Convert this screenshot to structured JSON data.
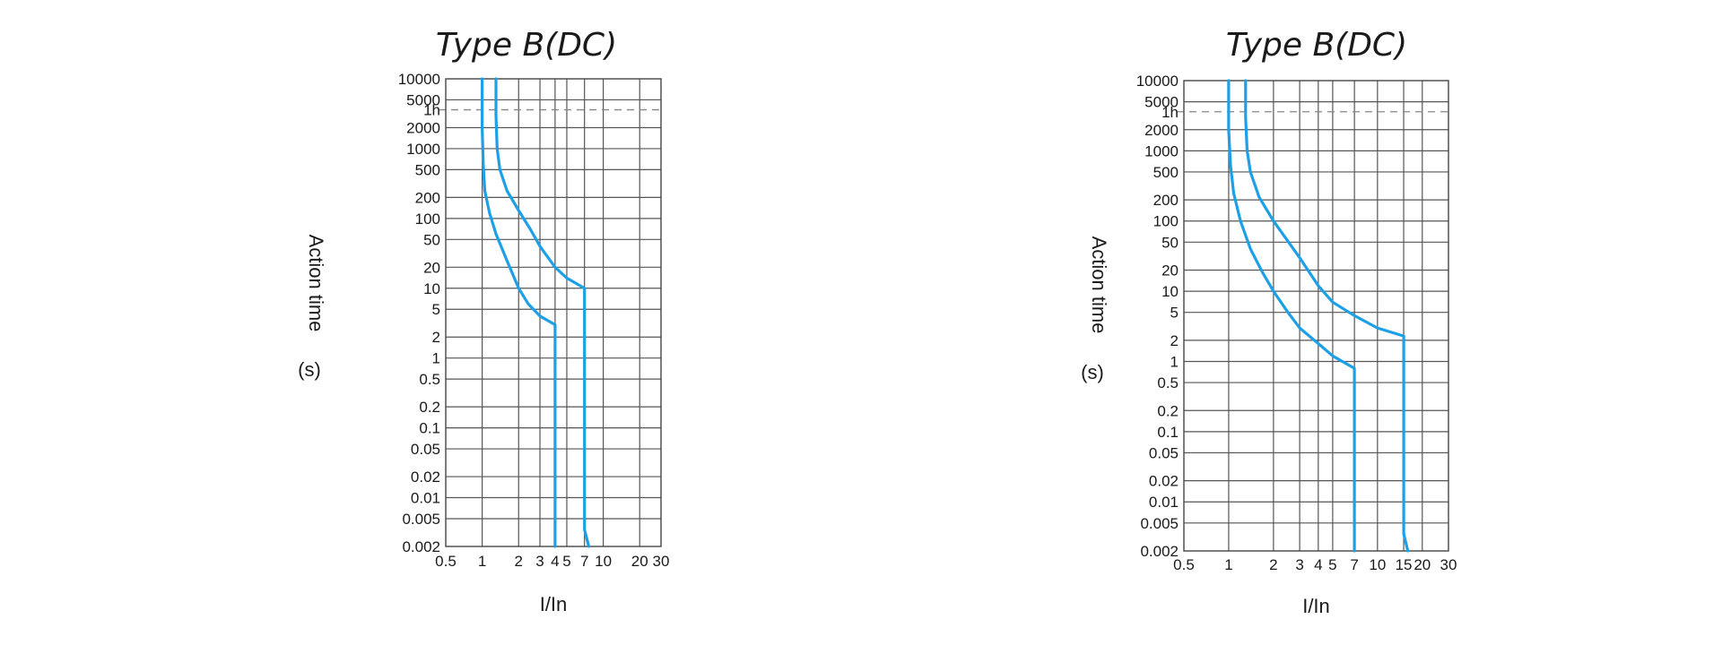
{
  "chart_data": [
    {
      "type": "line",
      "title": "Type B(DC)",
      "xlabel": "I/In",
      "ylabel": "Action time",
      "ylabel_unit": "(s)",
      "x_scale": "log",
      "y_scale": "log",
      "xlim": [
        0.5,
        30
      ],
      "ylim": [
        0.002,
        10000
      ],
      "x_ticks": [
        0.5,
        1,
        2,
        3,
        4,
        5,
        7,
        10,
        20,
        30
      ],
      "x_tick_labels": [
        "0.5",
        "1",
        "2",
        "3",
        "4",
        "5",
        "7",
        "10",
        "20",
        "30"
      ],
      "y_ticks": [
        10000,
        5000,
        3600,
        2000,
        1000,
        500,
        200,
        100,
        50,
        20,
        10,
        5,
        2,
        1,
        0.5,
        0.2,
        0.1,
        0.05,
        0.02,
        0.01,
        0.005,
        0.002
      ],
      "y_tick_labels": [
        "10000",
        "5000",
        "1h",
        "2000",
        "1000",
        "500",
        "200",
        "100",
        "50",
        "20",
        "10",
        "5",
        "2",
        "1",
        "0.5",
        "0.2",
        "0.1",
        "0.05",
        "0.02",
        "0.01",
        "0.005",
        "0.002"
      ],
      "reference_line": {
        "y": 3600,
        "label": "1h",
        "style": "dashed"
      },
      "grid": true,
      "series": [
        {
          "points": [
            [
              1,
              10000
            ],
            [
              1,
              2000
            ],
            [
              1.02,
              600
            ],
            [
              1.05,
              250
            ],
            [
              1.15,
              120
            ],
            [
              1.3,
              60
            ],
            [
              1.6,
              25
            ],
            [
              2,
              10
            ],
            [
              2.4,
              6
            ],
            [
              3,
              4
            ],
            [
              4,
              3
            ],
            [
              4,
              0.002
            ]
          ]
        },
        {
          "points": [
            [
              1.3,
              10000
            ],
            [
              1.3,
              3000
            ],
            [
              1.33,
              1000
            ],
            [
              1.4,
              500
            ],
            [
              1.6,
              250
            ],
            [
              2,
              130
            ],
            [
              2.5,
              70
            ],
            [
              3,
              40
            ],
            [
              4,
              20
            ],
            [
              5,
              14
            ],
            [
              7,
              10
            ],
            [
              7,
              0.0035
            ],
            [
              7.6,
              0.002
            ]
          ]
        }
      ]
    },
    {
      "type": "line",
      "title": "Type B(DC)",
      "xlabel": "I/In",
      "ylabel": "Action time",
      "ylabel_unit": "(s)",
      "x_scale": "log",
      "y_scale": "log",
      "xlim": [
        0.5,
        30
      ],
      "ylim": [
        0.002,
        10000
      ],
      "x_ticks": [
        0.5,
        1,
        2,
        3,
        4,
        5,
        7,
        10,
        15,
        20,
        30
      ],
      "x_tick_labels": [
        "0.5",
        "1",
        "2",
        "3",
        "4",
        "5",
        "7",
        "10",
        "15",
        "20",
        "30"
      ],
      "y_ticks": [
        10000,
        5000,
        3600,
        2000,
        1000,
        500,
        200,
        100,
        50,
        20,
        10,
        5,
        2,
        1,
        0.5,
        0.2,
        0.1,
        0.05,
        0.02,
        0.01,
        0.005,
        0.002
      ],
      "y_tick_labels": [
        "10000",
        "5000",
        "1h",
        "2000",
        "1000",
        "500",
        "200",
        "100",
        "50",
        "20",
        "10",
        "5",
        "2",
        "1",
        "0.5",
        "0.2",
        "0.1",
        "0.05",
        "0.02",
        "0.01",
        "0.005",
        "0.002"
      ],
      "reference_line": {
        "y": 3600,
        "label": "1h",
        "style": "dashed"
      },
      "grid": true,
      "series": [
        {
          "points": [
            [
              1,
              10000
            ],
            [
              1,
              2000
            ],
            [
              1.03,
              600
            ],
            [
              1.08,
              250
            ],
            [
              1.2,
              100
            ],
            [
              1.4,
              40
            ],
            [
              1.7,
              18
            ],
            [
              2,
              10
            ],
            [
              2.5,
              5
            ],
            [
              3,
              3
            ],
            [
              4,
              1.8
            ],
            [
              5,
              1.2
            ],
            [
              7,
              0.8
            ],
            [
              7,
              0.002
            ]
          ]
        },
        {
          "points": [
            [
              1.3,
              10000
            ],
            [
              1.3,
              3000
            ],
            [
              1.33,
              1000
            ],
            [
              1.4,
              500
            ],
            [
              1.6,
              220
            ],
            [
              2,
              100
            ],
            [
              3,
              30
            ],
            [
              4,
              12
            ],
            [
              5,
              7
            ],
            [
              7,
              4.5
            ],
            [
              10,
              3
            ],
            [
              15,
              2.3
            ],
            [
              15,
              0.0035
            ],
            [
              16,
              0.002
            ]
          ]
        }
      ]
    }
  ]
}
